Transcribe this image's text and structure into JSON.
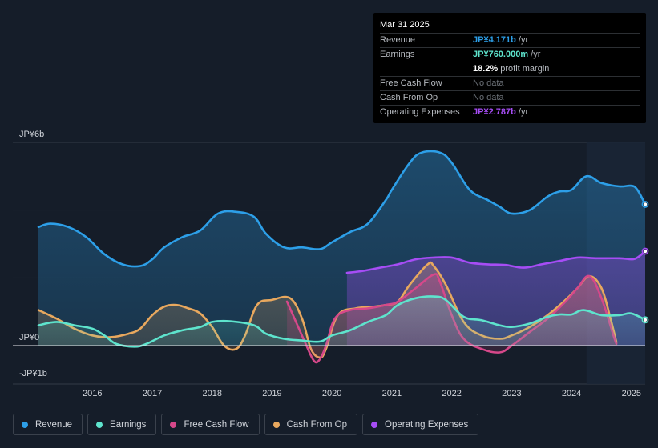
{
  "tooltip": {
    "date": "Mar 31 2025",
    "rows": [
      {
        "label": "Revenue",
        "value": "JP¥4.171b",
        "unit": " /yr",
        "color": "#2d9fe8"
      },
      {
        "label": "Earnings",
        "value": "JP¥760.000m",
        "unit": " /yr",
        "color": "#5ee4cd"
      },
      {
        "label": "",
        "value": "18.2%",
        "unit": " profit margin",
        "color": "#ffffff"
      },
      {
        "label": "Free Cash Flow",
        "value": "No data",
        "unit": "",
        "color": "#6b7077"
      },
      {
        "label": "Cash From Op",
        "value": "No data",
        "unit": "",
        "color": "#6b7077"
      },
      {
        "label": "Operating Expenses",
        "value": "JP¥2.787b",
        "unit": " /yr",
        "color": "#a64df5"
      }
    ]
  },
  "chart_data": {
    "type": "area",
    "title": "",
    "xlabel": "",
    "ylabel": "",
    "y_tick_labels": [
      {
        "value": 6,
        "label": "JP¥6b"
      },
      {
        "value": 0,
        "label": "JP¥0"
      },
      {
        "value": -1,
        "label": "-JP¥1b"
      }
    ],
    "ylim": [
      -1.05,
      6
    ],
    "xlim": [
      2015.1,
      2025.23
    ],
    "x_ticks": [
      2016,
      2017,
      2018,
      2019,
      2020,
      2021,
      2022,
      2023,
      2024,
      2025
    ],
    "forecast_start": 2024.25,
    "series": [
      {
        "name": "Revenue",
        "color": "#2d9fe8",
        "fill": true,
        "points": [
          [
            2015.1,
            3.5
          ],
          [
            2015.3,
            3.6
          ],
          [
            2015.6,
            3.5
          ],
          [
            2015.9,
            3.2
          ],
          [
            2016.2,
            2.7
          ],
          [
            2016.5,
            2.4
          ],
          [
            2016.8,
            2.35
          ],
          [
            2017.0,
            2.55
          ],
          [
            2017.2,
            2.9
          ],
          [
            2017.5,
            3.2
          ],
          [
            2017.8,
            3.4
          ],
          [
            2018.1,
            3.9
          ],
          [
            2018.4,
            3.95
          ],
          [
            2018.7,
            3.8
          ],
          [
            2018.9,
            3.3
          ],
          [
            2019.2,
            2.9
          ],
          [
            2019.5,
            2.9
          ],
          [
            2019.8,
            2.85
          ],
          [
            2020.0,
            3.05
          ],
          [
            2020.3,
            3.35
          ],
          [
            2020.6,
            3.6
          ],
          [
            2020.9,
            4.3
          ],
          [
            2021.0,
            4.6
          ],
          [
            2021.3,
            5.4
          ],
          [
            2021.5,
            5.7
          ],
          [
            2021.8,
            5.7
          ],
          [
            2022.0,
            5.4
          ],
          [
            2022.3,
            4.6
          ],
          [
            2022.6,
            4.3
          ],
          [
            2022.8,
            4.1
          ],
          [
            2023.0,
            3.9
          ],
          [
            2023.3,
            4.0
          ],
          [
            2023.6,
            4.4
          ],
          [
            2023.8,
            4.55
          ],
          [
            2024.0,
            4.6
          ],
          [
            2024.25,
            5.0
          ],
          [
            2024.5,
            4.8
          ],
          [
            2024.8,
            4.7
          ],
          [
            2025.0,
            4.72
          ],
          [
            2025.1,
            4.6
          ],
          [
            2025.23,
            4.171
          ]
        ]
      },
      {
        "name": "Earnings",
        "color": "#5ee4cd",
        "fill": true,
        "points": [
          [
            2015.1,
            0.6
          ],
          [
            2015.4,
            0.7
          ],
          [
            2015.7,
            0.6
          ],
          [
            2016.0,
            0.5
          ],
          [
            2016.2,
            0.3
          ],
          [
            2016.4,
            0.05
          ],
          [
            2016.7,
            -0.03
          ],
          [
            2016.9,
            0.05
          ],
          [
            2017.2,
            0.3
          ],
          [
            2017.5,
            0.45
          ],
          [
            2017.8,
            0.55
          ],
          [
            2018.0,
            0.7
          ],
          [
            2018.3,
            0.72
          ],
          [
            2018.7,
            0.6
          ],
          [
            2018.9,
            0.35
          ],
          [
            2019.2,
            0.2
          ],
          [
            2019.5,
            0.15
          ],
          [
            2019.8,
            0.12
          ],
          [
            2020.0,
            0.3
          ],
          [
            2020.3,
            0.45
          ],
          [
            2020.6,
            0.7
          ],
          [
            2020.9,
            0.9
          ],
          [
            2021.1,
            1.2
          ],
          [
            2021.4,
            1.4
          ],
          [
            2021.7,
            1.45
          ],
          [
            2021.9,
            1.35
          ],
          [
            2022.2,
            0.85
          ],
          [
            2022.5,
            0.75
          ],
          [
            2022.8,
            0.6
          ],
          [
            2023.0,
            0.55
          ],
          [
            2023.3,
            0.65
          ],
          [
            2023.6,
            0.85
          ],
          [
            2023.8,
            0.92
          ],
          [
            2024.0,
            0.92
          ],
          [
            2024.2,
            1.05
          ],
          [
            2024.5,
            0.9
          ],
          [
            2024.8,
            0.9
          ],
          [
            2025.0,
            0.95
          ],
          [
            2025.23,
            0.76
          ]
        ]
      },
      {
        "name": "Free Cash Flow",
        "color": "#d6488a",
        "fill": true,
        "segments": [
          [
            [
              2019.25,
              1.3
            ],
            [
              2019.4,
              0.7
            ],
            [
              2019.55,
              0.1
            ],
            [
              2019.7,
              -0.45
            ],
            [
              2019.8,
              -0.4
            ],
            [
              2019.9,
              0.0
            ],
            [
              2020.05,
              0.8
            ],
            [
              2020.3,
              1.05
            ],
            [
              2020.6,
              1.1
            ],
            [
              2020.9,
              1.2
            ],
            [
              2021.1,
              1.3
            ],
            [
              2021.4,
              1.7
            ],
            [
              2021.7,
              2.1
            ],
            [
              2021.8,
              1.9
            ],
            [
              2022.0,
              0.9
            ],
            [
              2022.2,
              0.2
            ],
            [
              2022.5,
              -0.1
            ],
            [
              2022.8,
              -0.2
            ],
            [
              2023.0,
              0.0
            ],
            [
              2023.3,
              0.4
            ],
            [
              2023.6,
              0.8
            ],
            [
              2023.9,
              1.3
            ],
            [
              2024.1,
              1.7
            ],
            [
              2024.3,
              2.05
            ],
            [
              2024.5,
              1.4
            ],
            [
              2024.7,
              0.3
            ],
            [
              2024.75,
              0.05
            ]
          ]
        ]
      },
      {
        "name": "Cash From Op",
        "color": "#e8a85e",
        "fill": true,
        "segments": [
          [
            [
              2015.1,
              1.05
            ],
            [
              2015.4,
              0.8
            ],
            [
              2015.7,
              0.5
            ],
            [
              2016.0,
              0.3
            ],
            [
              2016.3,
              0.25
            ],
            [
              2016.6,
              0.35
            ],
            [
              2016.8,
              0.5
            ],
            [
              2017.0,
              0.9
            ],
            [
              2017.2,
              1.15
            ],
            [
              2017.4,
              1.2
            ],
            [
              2017.6,
              1.1
            ],
            [
              2017.8,
              0.95
            ],
            [
              2018.0,
              0.55
            ],
            [
              2018.2,
              0.0
            ],
            [
              2018.4,
              -0.1
            ],
            [
              2018.55,
              0.3
            ],
            [
              2018.75,
              1.2
            ],
            [
              2019.0,
              1.35
            ],
            [
              2019.3,
              1.4
            ],
            [
              2019.5,
              0.8
            ],
            [
              2019.65,
              -0.1
            ],
            [
              2019.8,
              -0.35
            ],
            [
              2019.9,
              -0.1
            ],
            [
              2020.1,
              0.9
            ],
            [
              2020.4,
              1.1
            ],
            [
              2020.7,
              1.15
            ],
            [
              2020.9,
              1.2
            ],
            [
              2021.1,
              1.3
            ],
            [
              2021.3,
              1.8
            ],
            [
              2021.6,
              2.4
            ],
            [
              2021.7,
              2.35
            ],
            [
              2021.9,
              1.8
            ],
            [
              2022.2,
              0.7
            ],
            [
              2022.5,
              0.3
            ],
            [
              2022.8,
              0.2
            ],
            [
              2023.0,
              0.3
            ],
            [
              2023.3,
              0.55
            ],
            [
              2023.6,
              0.9
            ],
            [
              2023.9,
              1.35
            ],
            [
              2024.1,
              1.7
            ],
            [
              2024.3,
              2.05
            ],
            [
              2024.5,
              1.7
            ],
            [
              2024.65,
              0.8
            ],
            [
              2024.75,
              0.1
            ]
          ]
        ]
      },
      {
        "name": "Operating Expenses",
        "color": "#a64df5",
        "fill": true,
        "segments": [
          [
            [
              2020.25,
              2.15
            ],
            [
              2020.5,
              2.2
            ],
            [
              2020.8,
              2.3
            ],
            [
              2021.1,
              2.4
            ],
            [
              2021.4,
              2.55
            ],
            [
              2021.7,
              2.6
            ],
            [
              2022.0,
              2.6
            ],
            [
              2022.3,
              2.45
            ],
            [
              2022.6,
              2.4
            ],
            [
              2022.9,
              2.38
            ],
            [
              2023.2,
              2.3
            ],
            [
              2023.5,
              2.4
            ],
            [
              2023.8,
              2.5
            ],
            [
              2024.1,
              2.6
            ],
            [
              2024.4,
              2.58
            ],
            [
              2024.8,
              2.58
            ],
            [
              2025.0,
              2.55
            ],
            [
              2025.1,
              2.6
            ],
            [
              2025.23,
              2.787
            ]
          ]
        ]
      }
    ]
  },
  "legend": [
    {
      "label": "Revenue",
      "color": "#2d9fe8"
    },
    {
      "label": "Earnings",
      "color": "#5ee4cd"
    },
    {
      "label": "Free Cash Flow",
      "color": "#d6488a"
    },
    {
      "label": "Cash From Op",
      "color": "#e8a85e"
    },
    {
      "label": "Operating Expenses",
      "color": "#a64df5"
    }
  ]
}
